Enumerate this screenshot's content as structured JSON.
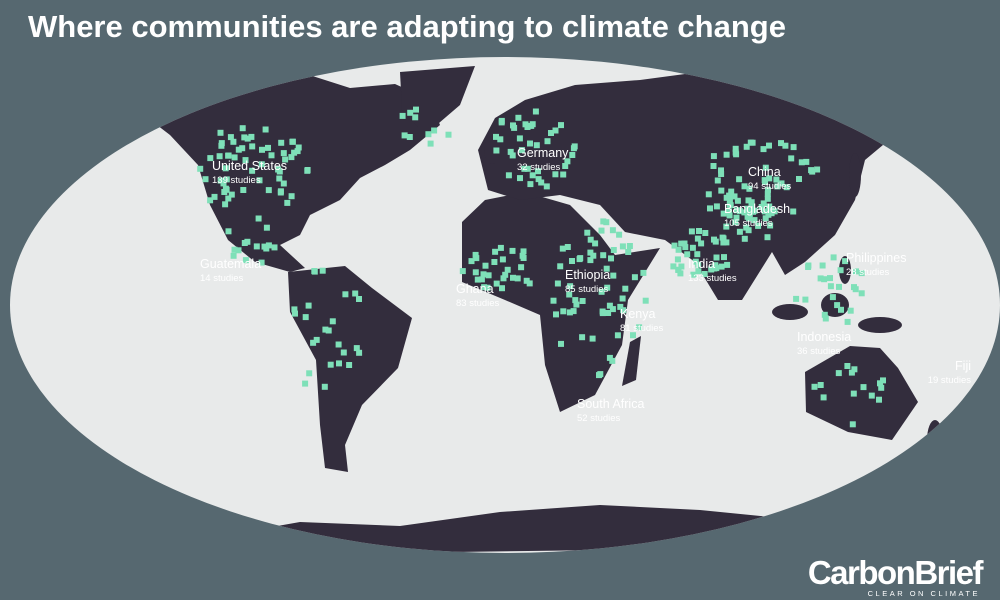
{
  "title": "Where communities are adapting to climate change",
  "locations": [
    {
      "name": "United States",
      "studies": "139 studies"
    },
    {
      "name": "Germany",
      "studies": "32 studies"
    },
    {
      "name": "China",
      "studies": "94 studies"
    },
    {
      "name": "Bangladesh",
      "studies": "105 studies"
    },
    {
      "name": "Philippines",
      "studies": "28 studies"
    },
    {
      "name": "Guatemala",
      "studies": "14 studies"
    },
    {
      "name": "Ghana",
      "studies": "83 studies"
    },
    {
      "name": "Ethiopia",
      "studies": "85 studies"
    },
    {
      "name": "India",
      "studies": "133 studies"
    },
    {
      "name": "Kenya",
      "studies": "81 studies"
    },
    {
      "name": "Indonesia",
      "studies": "36 studies"
    },
    {
      "name": "Fiji",
      "studies": "19 studies"
    },
    {
      "name": "South Africa",
      "studies": "52 studies"
    }
  ],
  "logo": {
    "brand": "CarbonBrief",
    "tagline": "CLEAR ON CLIMATE"
  }
}
